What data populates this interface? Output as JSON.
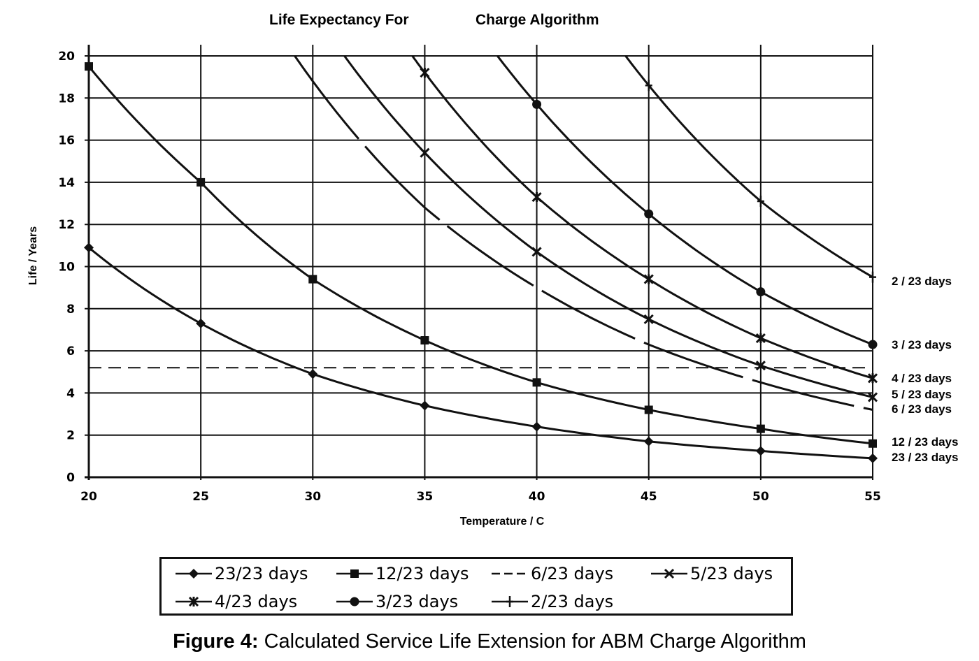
{
  "chart_data": {
    "type": "line",
    "title_left": "Life Expectancy For",
    "title_right": "Charge Algorithm",
    "xlabel": "Temperature / C",
    "ylabel": "Life / Years",
    "xlim": [
      20,
      55
    ],
    "ylim": [
      0,
      20
    ],
    "x_ticks": [
      "20",
      "25",
      "30",
      "35",
      "40",
      "45",
      "50",
      "55"
    ],
    "y_ticks": [
      "0",
      "2",
      "4",
      "6",
      "8",
      "10",
      "12",
      "14",
      "16",
      "18",
      "20"
    ],
    "x_tick_values": [
      20,
      25,
      30,
      35,
      40,
      45,
      50,
      55
    ],
    "y_tick_values": [
      0,
      2,
      4,
      6,
      8,
      10,
      12,
      14,
      16,
      18,
      20
    ],
    "grid": true,
    "reference_line": {
      "y": 5.2,
      "style": "dashed"
    },
    "x": [
      20,
      25,
      30,
      35,
      40,
      45,
      50,
      55
    ],
    "series": [
      {
        "name": "23/23 days",
        "end_label": "23 / 23 days",
        "marker": "diamond",
        "line": "solid",
        "values": [
          10.9,
          7.3,
          4.9,
          3.4,
          2.4,
          1.7,
          1.25,
          0.9
        ]
      },
      {
        "name": "12/23 days",
        "end_label": "12 / 23 days",
        "marker": "square",
        "line": "solid",
        "values": [
          19.5,
          14.0,
          9.4,
          6.5,
          4.5,
          3.2,
          2.3,
          1.6
        ]
      },
      {
        "name": "6/23 days",
        "end_label": "6 / 23 days",
        "marker": "none",
        "line": "dashed-gaps",
        "values": [
          null,
          null,
          18.8,
          12.8,
          9.0,
          6.3,
          4.5,
          3.2
        ]
      },
      {
        "name": "5/23 days",
        "end_label": "5 / 23 days",
        "marker": "x",
        "line": "solid",
        "values": [
          null,
          null,
          null,
          15.4,
          10.7,
          7.5,
          5.3,
          3.8
        ]
      },
      {
        "name": "4/23 days",
        "end_label": "4 / 23 days",
        "marker": "star",
        "line": "solid",
        "values": [
          null,
          null,
          null,
          19.2,
          13.3,
          9.4,
          6.6,
          4.7
        ]
      },
      {
        "name": "3/23 days",
        "end_label": "3 / 23 days",
        "marker": "circle",
        "line": "solid",
        "values": [
          null,
          null,
          null,
          null,
          17.7,
          12.5,
          8.8,
          6.3
        ]
      },
      {
        "name": "2/23 days",
        "end_label": "2 / 23 days",
        "marker": "plus",
        "line": "solid",
        "values": [
          null,
          null,
          null,
          null,
          null,
          18.6,
          13.1,
          9.5
        ]
      }
    ],
    "legend_placement": "bottom"
  },
  "caption": {
    "label": "Figure 4:",
    "text": " Calculated Service Life Extension for ABM Charge Algorithm"
  }
}
